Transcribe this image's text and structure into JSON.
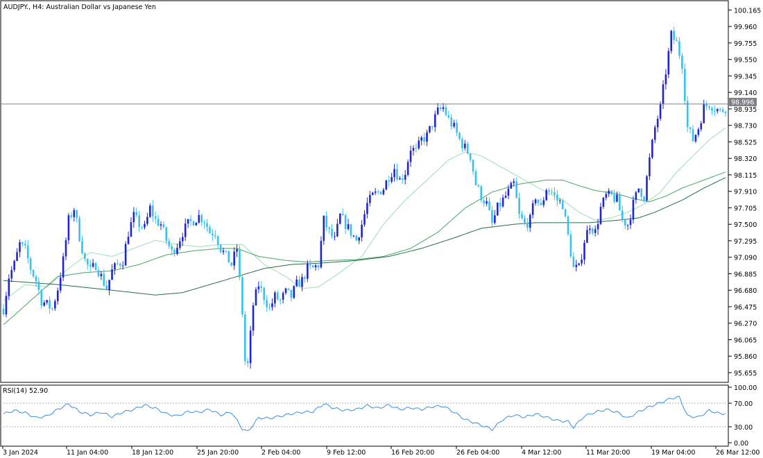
{
  "header": {
    "symbol": "AUDJPY.",
    "timeframe": "H4:",
    "description": "Australian Dollar vs Japanese Yen"
  },
  "colors": {
    "candle_up": "#1f24d9",
    "candle_down": "#37c0f0",
    "ma_fast": "#9fdcb6",
    "ma_mid": "#45a46a",
    "ma_slow": "#256c44",
    "rsi_line": "#3a8edc",
    "price_line": "#7f7f8a",
    "price_label_bg": "#7f7f8a"
  },
  "current_price": "98.996",
  "rsi": {
    "label": "RSI(14) 52.90",
    "levels": [
      "100.00",
      "70.00",
      "30.00",
      "0.00"
    ]
  },
  "chart_data": [
    {
      "type": "candlestick",
      "title": "AUDJPY., H4:  Australian Dollar vs Japanese Yen",
      "y_ticks": [
        "100.165",
        "99.960",
        "99.755",
        "99.550",
        "99.345",
        "99.140",
        "98.935",
        "98.730",
        "98.525",
        "98.320",
        "98.115",
        "97.910",
        "97.705",
        "97.500",
        "97.295",
        "97.090",
        "96.885",
        "96.680",
        "96.475",
        "96.270",
        "96.065",
        "95.860",
        "95.655"
      ],
      "ylim": [
        95.56,
        100.22
      ],
      "x_ticks": [
        "3 Jan 2024",
        "11 Jan 04:00",
        "18 Jan 12:00",
        "25 Jan 20:00",
        "2 Feb 04:00",
        "9 Feb 12:00",
        "16 Feb 20:00",
        "26 Feb 04:00",
        "4 Mar 12:00",
        "11 Mar 20:00",
        "19 Mar 04:00",
        "26 Mar 12:00"
      ],
      "anchors": [
        [
          0,
          96.45
        ],
        [
          2,
          96.85
        ],
        [
          4,
          97.0
        ],
        [
          6,
          97.25
        ],
        [
          8,
          97.18
        ],
        [
          10,
          96.95
        ],
        [
          12,
          96.8
        ],
        [
          14,
          96.55
        ],
        [
          16,
          96.5
        ],
        [
          18,
          96.45
        ],
        [
          20,
          96.7
        ],
        [
          22,
          97.05
        ],
        [
          24,
          97.55
        ],
        [
          26,
          97.7
        ],
        [
          28,
          97.35
        ],
        [
          30,
          97.05
        ],
        [
          32,
          96.92
        ],
        [
          34,
          97.0
        ],
        [
          36,
          96.85
        ],
        [
          38,
          96.7
        ],
        [
          40,
          96.92
        ],
        [
          42,
          97.0
        ],
        [
          44,
          97.05
        ],
        [
          46,
          97.4
        ],
        [
          48,
          97.6
        ],
        [
          50,
          97.5
        ],
        [
          52,
          97.45
        ],
        [
          54,
          97.7
        ],
        [
          56,
          97.55
        ],
        [
          58,
          97.5
        ],
        [
          60,
          97.3
        ],
        [
          62,
          97.15
        ],
        [
          64,
          97.25
        ],
        [
          66,
          97.4
        ],
        [
          68,
          97.5
        ],
        [
          70,
          97.55
        ],
        [
          72,
          97.6
        ],
        [
          74,
          97.55
        ],
        [
          76,
          97.4
        ],
        [
          78,
          97.4
        ],
        [
          80,
          97.2
        ],
        [
          82,
          97.1
        ],
        [
          84,
          97.0
        ],
        [
          86,
          97.2
        ],
        [
          88,
          96.4
        ],
        [
          89,
          95.8
        ],
        [
          90,
          95.75
        ],
        [
          92,
          96.5
        ],
        [
          94,
          96.75
        ],
        [
          96,
          96.6
        ],
        [
          98,
          96.45
        ],
        [
          100,
          96.6
        ],
        [
          102,
          96.55
        ],
        [
          104,
          96.65
        ],
        [
          106,
          96.6
        ],
        [
          108,
          96.75
        ],
        [
          110,
          96.8
        ],
        [
          112,
          96.95
        ],
        [
          114,
          96.95
        ],
        [
          116,
          97.0
        ],
        [
          118,
          97.55
        ],
        [
          120,
          97.4
        ],
        [
          122,
          97.3
        ],
        [
          124,
          97.6
        ],
        [
          126,
          97.5
        ],
        [
          128,
          97.4
        ],
        [
          130,
          97.3
        ],
        [
          132,
          97.5
        ],
        [
          134,
          97.75
        ],
        [
          136,
          97.85
        ],
        [
          138,
          97.9
        ],
        [
          140,
          97.95
        ],
        [
          142,
          98.1
        ],
        [
          144,
          98.2
        ],
        [
          146,
          98.05
        ],
        [
          148,
          98.15
        ],
        [
          150,
          98.45
        ],
        [
          152,
          98.4
        ],
        [
          154,
          98.55
        ],
        [
          156,
          98.6
        ],
        [
          158,
          98.75
        ],
        [
          160,
          98.9
        ],
        [
          162,
          98.95
        ],
        [
          164,
          98.8
        ],
        [
          166,
          98.7
        ],
        [
          168,
          98.55
        ],
        [
          170,
          98.45
        ],
        [
          172,
          98.35
        ],
        [
          174,
          98.0
        ],
        [
          176,
          97.85
        ],
        [
          178,
          97.75
        ],
        [
          180,
          97.5
        ],
        [
          182,
          97.7
        ],
        [
          184,
          97.8
        ],
        [
          186,
          97.9
        ],
        [
          188,
          98.0
        ],
        [
          190,
          97.6
        ],
        [
          192,
          97.5
        ],
        [
          194,
          97.55
        ],
        [
          196,
          97.85
        ],
        [
          198,
          97.7
        ],
        [
          200,
          97.95
        ],
        [
          202,
          97.9
        ],
        [
          204,
          97.8
        ],
        [
          206,
          97.75
        ],
        [
          208,
          97.35
        ],
        [
          210,
          96.95
        ],
        [
          212,
          96.95
        ],
        [
          214,
          97.3
        ],
        [
          216,
          97.5
        ],
        [
          218,
          97.4
        ],
        [
          220,
          97.7
        ],
        [
          222,
          97.85
        ],
        [
          224,
          97.85
        ],
        [
          226,
          97.8
        ],
        [
          228,
          97.55
        ],
        [
          230,
          97.5
        ],
        [
          232,
          97.75
        ],
        [
          234,
          97.95
        ],
        [
          236,
          97.85
        ],
        [
          238,
          98.3
        ],
        [
          240,
          98.7
        ],
        [
          242,
          98.95
        ],
        [
          244,
          99.4
        ],
        [
          246,
          99.85
        ],
        [
          248,
          99.75
        ],
        [
          250,
          99.5
        ],
        [
          252,
          98.7
        ],
        [
          254,
          98.55
        ],
        [
          256,
          98.7
        ],
        [
          258,
          98.95
        ],
        [
          260,
          99.0
        ],
        [
          262,
          98.95
        ],
        [
          264,
          98.9
        ],
        [
          266,
          98.95
        ]
      ],
      "series": [
        {
          "name": "MA fast",
          "points": [
            [
              0,
              96.55
            ],
            [
              8,
              96.75
            ],
            [
              16,
              96.72
            ],
            [
              24,
              96.95
            ],
            [
              32,
              97.15
            ],
            [
              40,
              97.1
            ],
            [
              48,
              97.2
            ],
            [
              56,
              97.3
            ],
            [
              64,
              97.25
            ],
            [
              72,
              97.22
            ],
            [
              80,
              97.25
            ],
            [
              88,
              97.25
            ],
            [
              96,
              97.0
            ],
            [
              104,
              96.85
            ],
            [
              110,
              96.7
            ],
            [
              116,
              96.72
            ],
            [
              124,
              96.9
            ],
            [
              132,
              97.1
            ],
            [
              140,
              97.5
            ],
            [
              148,
              97.8
            ],
            [
              156,
              98.05
            ],
            [
              164,
              98.3
            ],
            [
              170,
              98.4
            ],
            [
              176,
              98.35
            ],
            [
              184,
              98.2
            ],
            [
              192,
              98.05
            ],
            [
              200,
              97.9
            ],
            [
              206,
              97.8
            ],
            [
              212,
              97.65
            ],
            [
              218,
              97.55
            ],
            [
              224,
              97.58
            ],
            [
              230,
              97.65
            ],
            [
              236,
              97.75
            ],
            [
              242,
              97.9
            ],
            [
              248,
              98.15
            ],
            [
              254,
              98.35
            ],
            [
              260,
              98.55
            ],
            [
              266,
              98.7
            ]
          ]
        },
        {
          "name": "MA mid",
          "points": [
            [
              0,
              96.25
            ],
            [
              10,
              96.55
            ],
            [
              20,
              96.85
            ],
            [
              30,
              96.9
            ],
            [
              40,
              96.92
            ],
            [
              50,
              97.0
            ],
            [
              60,
              97.12
            ],
            [
              70,
              97.17
            ],
            [
              80,
              97.2
            ],
            [
              86,
              97.2
            ],
            [
              94,
              97.1
            ],
            [
              104,
              97.05
            ],
            [
              112,
              97.03
            ],
            [
              120,
              97.05
            ],
            [
              130,
              97.06
            ],
            [
              140,
              97.1
            ],
            [
              150,
              97.2
            ],
            [
              160,
              97.4
            ],
            [
              170,
              97.7
            ],
            [
              180,
              97.9
            ],
            [
              190,
              98.0
            ],
            [
              200,
              98.05
            ],
            [
              206,
              98.05
            ],
            [
              212,
              97.98
            ],
            [
              218,
              97.92
            ],
            [
              226,
              97.88
            ],
            [
              232,
              97.82
            ],
            [
              238,
              97.78
            ],
            [
              244,
              97.85
            ],
            [
              250,
              97.95
            ],
            [
              258,
              98.05
            ],
            [
              266,
              98.15
            ]
          ]
        },
        {
          "name": "MA slow",
          "points": [
            [
              0,
              96.8
            ],
            [
              20,
              96.75
            ],
            [
              40,
              96.68
            ],
            [
              56,
              96.62
            ],
            [
              66,
              96.65
            ],
            [
              76,
              96.75
            ],
            [
              86,
              96.85
            ],
            [
              96,
              96.95
            ],
            [
              106,
              97.0
            ],
            [
              118,
              97.02
            ],
            [
              130,
              97.05
            ],
            [
              142,
              97.1
            ],
            [
              154,
              97.2
            ],
            [
              166,
              97.33
            ],
            [
              176,
              97.45
            ],
            [
              188,
              97.5
            ],
            [
              196,
              97.52
            ],
            [
              206,
              97.52
            ],
            [
              216,
              97.52
            ],
            [
              226,
              97.55
            ],
            [
              234,
              97.58
            ],
            [
              240,
              97.65
            ],
            [
              250,
              97.8
            ],
            [
              258,
              97.95
            ],
            [
              266,
              98.08
            ]
          ]
        }
      ]
    },
    {
      "type": "line",
      "title": "RSI(14) 52.90",
      "ylim": [
        0,
        100
      ],
      "y_ticks": [
        "100.00",
        "70.00",
        "30.00",
        "0.00"
      ],
      "series": [
        {
          "name": "RSI(14)",
          "points": [
            [
              0,
              52
            ],
            [
              4,
              58
            ],
            [
              8,
              54
            ],
            [
              12,
              45
            ],
            [
              16,
              48
            ],
            [
              20,
              60
            ],
            [
              24,
              70
            ],
            [
              28,
              56
            ],
            [
              32,
              50
            ],
            [
              36,
              55
            ],
            [
              40,
              47
            ],
            [
              44,
              55
            ],
            [
              48,
              60
            ],
            [
              52,
              68
            ],
            [
              56,
              62
            ],
            [
              60,
              52
            ],
            [
              64,
              48
            ],
            [
              68,
              56
            ],
            [
              72,
              55
            ],
            [
              76,
              60
            ],
            [
              80,
              50
            ],
            [
              84,
              55
            ],
            [
              86,
              40
            ],
            [
              88,
              25
            ],
            [
              90,
              20
            ],
            [
              94,
              45
            ],
            [
              98,
              44
            ],
            [
              102,
              48
            ],
            [
              106,
              52
            ],
            [
              110,
              55
            ],
            [
              114,
              56
            ],
            [
              118,
              70
            ],
            [
              122,
              62
            ],
            [
              126,
              58
            ],
            [
              130,
              60
            ],
            [
              134,
              67
            ],
            [
              138,
              62
            ],
            [
              142,
              68
            ],
            [
              146,
              60
            ],
            [
              150,
              63
            ],
            [
              154,
              60
            ],
            [
              158,
              65
            ],
            [
              162,
              66
            ],
            [
              166,
              55
            ],
            [
              170,
              42
            ],
            [
              174,
              35
            ],
            [
              178,
              28
            ],
            [
              180,
              24
            ],
            [
              184,
              42
            ],
            [
              188,
              50
            ],
            [
              192,
              46
            ],
            [
              196,
              52
            ],
            [
              200,
              46
            ],
            [
              204,
              40
            ],
            [
              208,
              38
            ],
            [
              210,
              28
            ],
            [
              214,
              48
            ],
            [
              218,
              55
            ],
            [
              222,
              60
            ],
            [
              226,
              55
            ],
            [
              230,
              44
            ],
            [
              234,
              56
            ],
            [
              238,
              65
            ],
            [
              242,
              72
            ],
            [
              246,
              80
            ],
            [
              249,
              82
            ],
            [
              252,
              48
            ],
            [
              256,
              46
            ],
            [
              260,
              58
            ],
            [
              264,
              52
            ],
            [
              266,
              53
            ]
          ]
        }
      ]
    }
  ]
}
